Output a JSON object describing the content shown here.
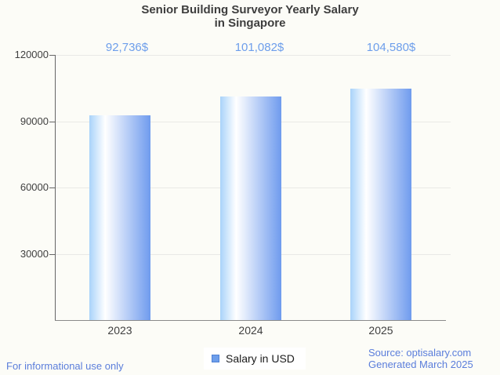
{
  "page": {
    "background": "#fcfcf7",
    "footer_left": "For informational use only",
    "source_line1": "Source: optisalary.com",
    "source_line2": "Generated March 2025"
  },
  "chart_data": {
    "type": "bar",
    "title": "Senior Building Surveyor Yearly Salary in Singapore",
    "title_line1": "Senior Building Surveyor Yearly Salary",
    "title_line2": "in Singapore",
    "categories": [
      "2023",
      "2024",
      "2025"
    ],
    "series": [
      {
        "name": "Salary in USD",
        "values": [
          92736,
          101082,
          104580
        ],
        "value_labels": [
          "92,736$",
          "101,082$",
          "104,580$"
        ]
      }
    ],
    "xlabel": "",
    "ylabel": "",
    "ylim": [
      0,
      120000
    ],
    "yticks": [
      30000,
      60000,
      90000,
      120000
    ],
    "grid": true,
    "legend_position": "bottom",
    "colors": {
      "bar_gradient_left": "#a9d3fa",
      "bar_gradient_mid": "#ffffff",
      "bar_gradient_right": "#6f9bee",
      "value_label_text": "#6d9eeb",
      "axis_text": "#3f3f3f",
      "title_text": "#3e3e3e",
      "gridline": "#e9e9e6",
      "y_axis_line": "#666666",
      "x_axis_line": "#8a8a8a",
      "legend_swatch_fill": "#6d9eeb",
      "legend_swatch_border": "#4f81d4",
      "legend_text": "#1b1b1b",
      "footer_text": "#5b7edb"
    }
  }
}
